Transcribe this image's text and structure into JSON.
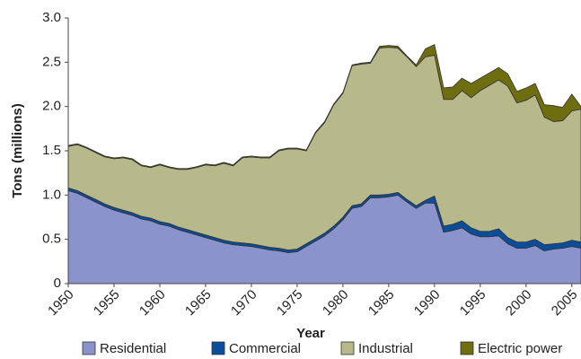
{
  "chart_data": {
    "type": "stacked_area",
    "xlabel": "Year",
    "ylabel": "Tons (millions)",
    "x": [
      1950,
      1951,
      1952,
      1953,
      1954,
      1955,
      1956,
      1957,
      1958,
      1959,
      1960,
      1961,
      1962,
      1963,
      1964,
      1965,
      1966,
      1967,
      1968,
      1969,
      1970,
      1971,
      1972,
      1973,
      1974,
      1975,
      1976,
      1977,
      1978,
      1979,
      1980,
      1981,
      1982,
      1983,
      1984,
      1985,
      1986,
      1987,
      1988,
      1989,
      1990,
      1991,
      1992,
      1993,
      1994,
      1995,
      1996,
      1997,
      1998,
      1999,
      2000,
      2001,
      2002,
      2003,
      2004,
      2005,
      2006
    ],
    "xlim": [
      1950,
      2006
    ],
    "xticks": [
      1950,
      1955,
      1960,
      1965,
      1970,
      1975,
      1980,
      1985,
      1990,
      1995,
      2000,
      2005
    ],
    "ylim": [
      0,
      3
    ],
    "yticks": [
      0,
      0.5,
      {
        "value": 1,
        "label": "1.0"
      },
      1.5,
      {
        "value": 2,
        "label": "2.0"
      },
      2.5,
      {
        "value": 3,
        "label": "3.0"
      }
    ],
    "grid": false,
    "series": [
      {
        "name": "Residential",
        "color": "#8b93cc",
        "values": [
          1.05,
          1.02,
          0.97,
          0.92,
          0.87,
          0.83,
          0.8,
          0.77,
          0.73,
          0.71,
          0.67,
          0.65,
          0.61,
          0.58,
          0.55,
          0.52,
          0.49,
          0.46,
          0.44,
          0.43,
          0.42,
          0.4,
          0.38,
          0.37,
          0.35,
          0.36,
          0.42,
          0.48,
          0.54,
          0.62,
          0.72,
          0.85,
          0.87,
          0.97,
          0.97,
          0.98,
          1.0,
          0.92,
          0.85,
          0.91,
          0.91,
          0.58,
          0.6,
          0.63,
          0.56,
          0.53,
          0.53,
          0.54,
          0.45,
          0.4,
          0.4,
          0.43,
          0.37,
          0.39,
          0.4,
          0.42,
          0.4
        ]
      },
      {
        "name": "Commercial",
        "color": "#0a4e9b",
        "values": [
          0.03,
          0.03,
          0.03,
          0.03,
          0.03,
          0.03,
          0.03,
          0.03,
          0.03,
          0.03,
          0.03,
          0.03,
          0.03,
          0.03,
          0.03,
          0.03,
          0.03,
          0.03,
          0.03,
          0.03,
          0.03,
          0.03,
          0.03,
          0.03,
          0.03,
          0.03,
          0.03,
          0.03,
          0.03,
          0.03,
          0.03,
          0.03,
          0.03,
          0.03,
          0.03,
          0.03,
          0.03,
          0.03,
          0.03,
          0.03,
          0.08,
          0.07,
          0.07,
          0.08,
          0.07,
          0.06,
          0.06,
          0.08,
          0.07,
          0.07,
          0.07,
          0.07,
          0.07,
          0.06,
          0.06,
          0.07,
          0.07
        ]
      },
      {
        "name": "Industrial",
        "color": "#b8b98a",
        "values": [
          0.47,
          0.52,
          0.53,
          0.53,
          0.53,
          0.55,
          0.59,
          0.6,
          0.57,
          0.57,
          0.64,
          0.63,
          0.65,
          0.68,
          0.73,
          0.79,
          0.81,
          0.87,
          0.86,
          0.96,
          0.98,
          0.99,
          1.01,
          1.1,
          1.14,
          1.13,
          1.05,
          1.19,
          1.25,
          1.37,
          1.4,
          1.58,
          1.58,
          1.49,
          1.66,
          1.66,
          1.63,
          1.61,
          1.57,
          1.62,
          1.59,
          1.43,
          1.41,
          1.47,
          1.47,
          1.59,
          1.65,
          1.68,
          1.71,
          1.57,
          1.6,
          1.63,
          1.44,
          1.38,
          1.38,
          1.46,
          1.5
        ]
      },
      {
        "name": "Electric power",
        "color": "#6e6e10",
        "values": [
          0.01,
          0.01,
          0.01,
          0.01,
          0.01,
          0.01,
          0.01,
          0.01,
          0.01,
          0.01,
          0.01,
          0.01,
          0.01,
          0.01,
          0.01,
          0.01,
          0.01,
          0.01,
          0.01,
          0.01,
          0.01,
          0.01,
          0.01,
          0.01,
          0.01,
          0.01,
          0.01,
          0.01,
          0.01,
          0.01,
          0.01,
          0.01,
          0.01,
          0.01,
          0.02,
          0.02,
          0.02,
          0.01,
          0.02,
          0.09,
          0.12,
          0.13,
          0.14,
          0.14,
          0.16,
          0.14,
          0.14,
          0.14,
          0.14,
          0.13,
          0.14,
          0.13,
          0.14,
          0.18,
          0.15,
          0.19,
          0.03
        ]
      }
    ]
  }
}
